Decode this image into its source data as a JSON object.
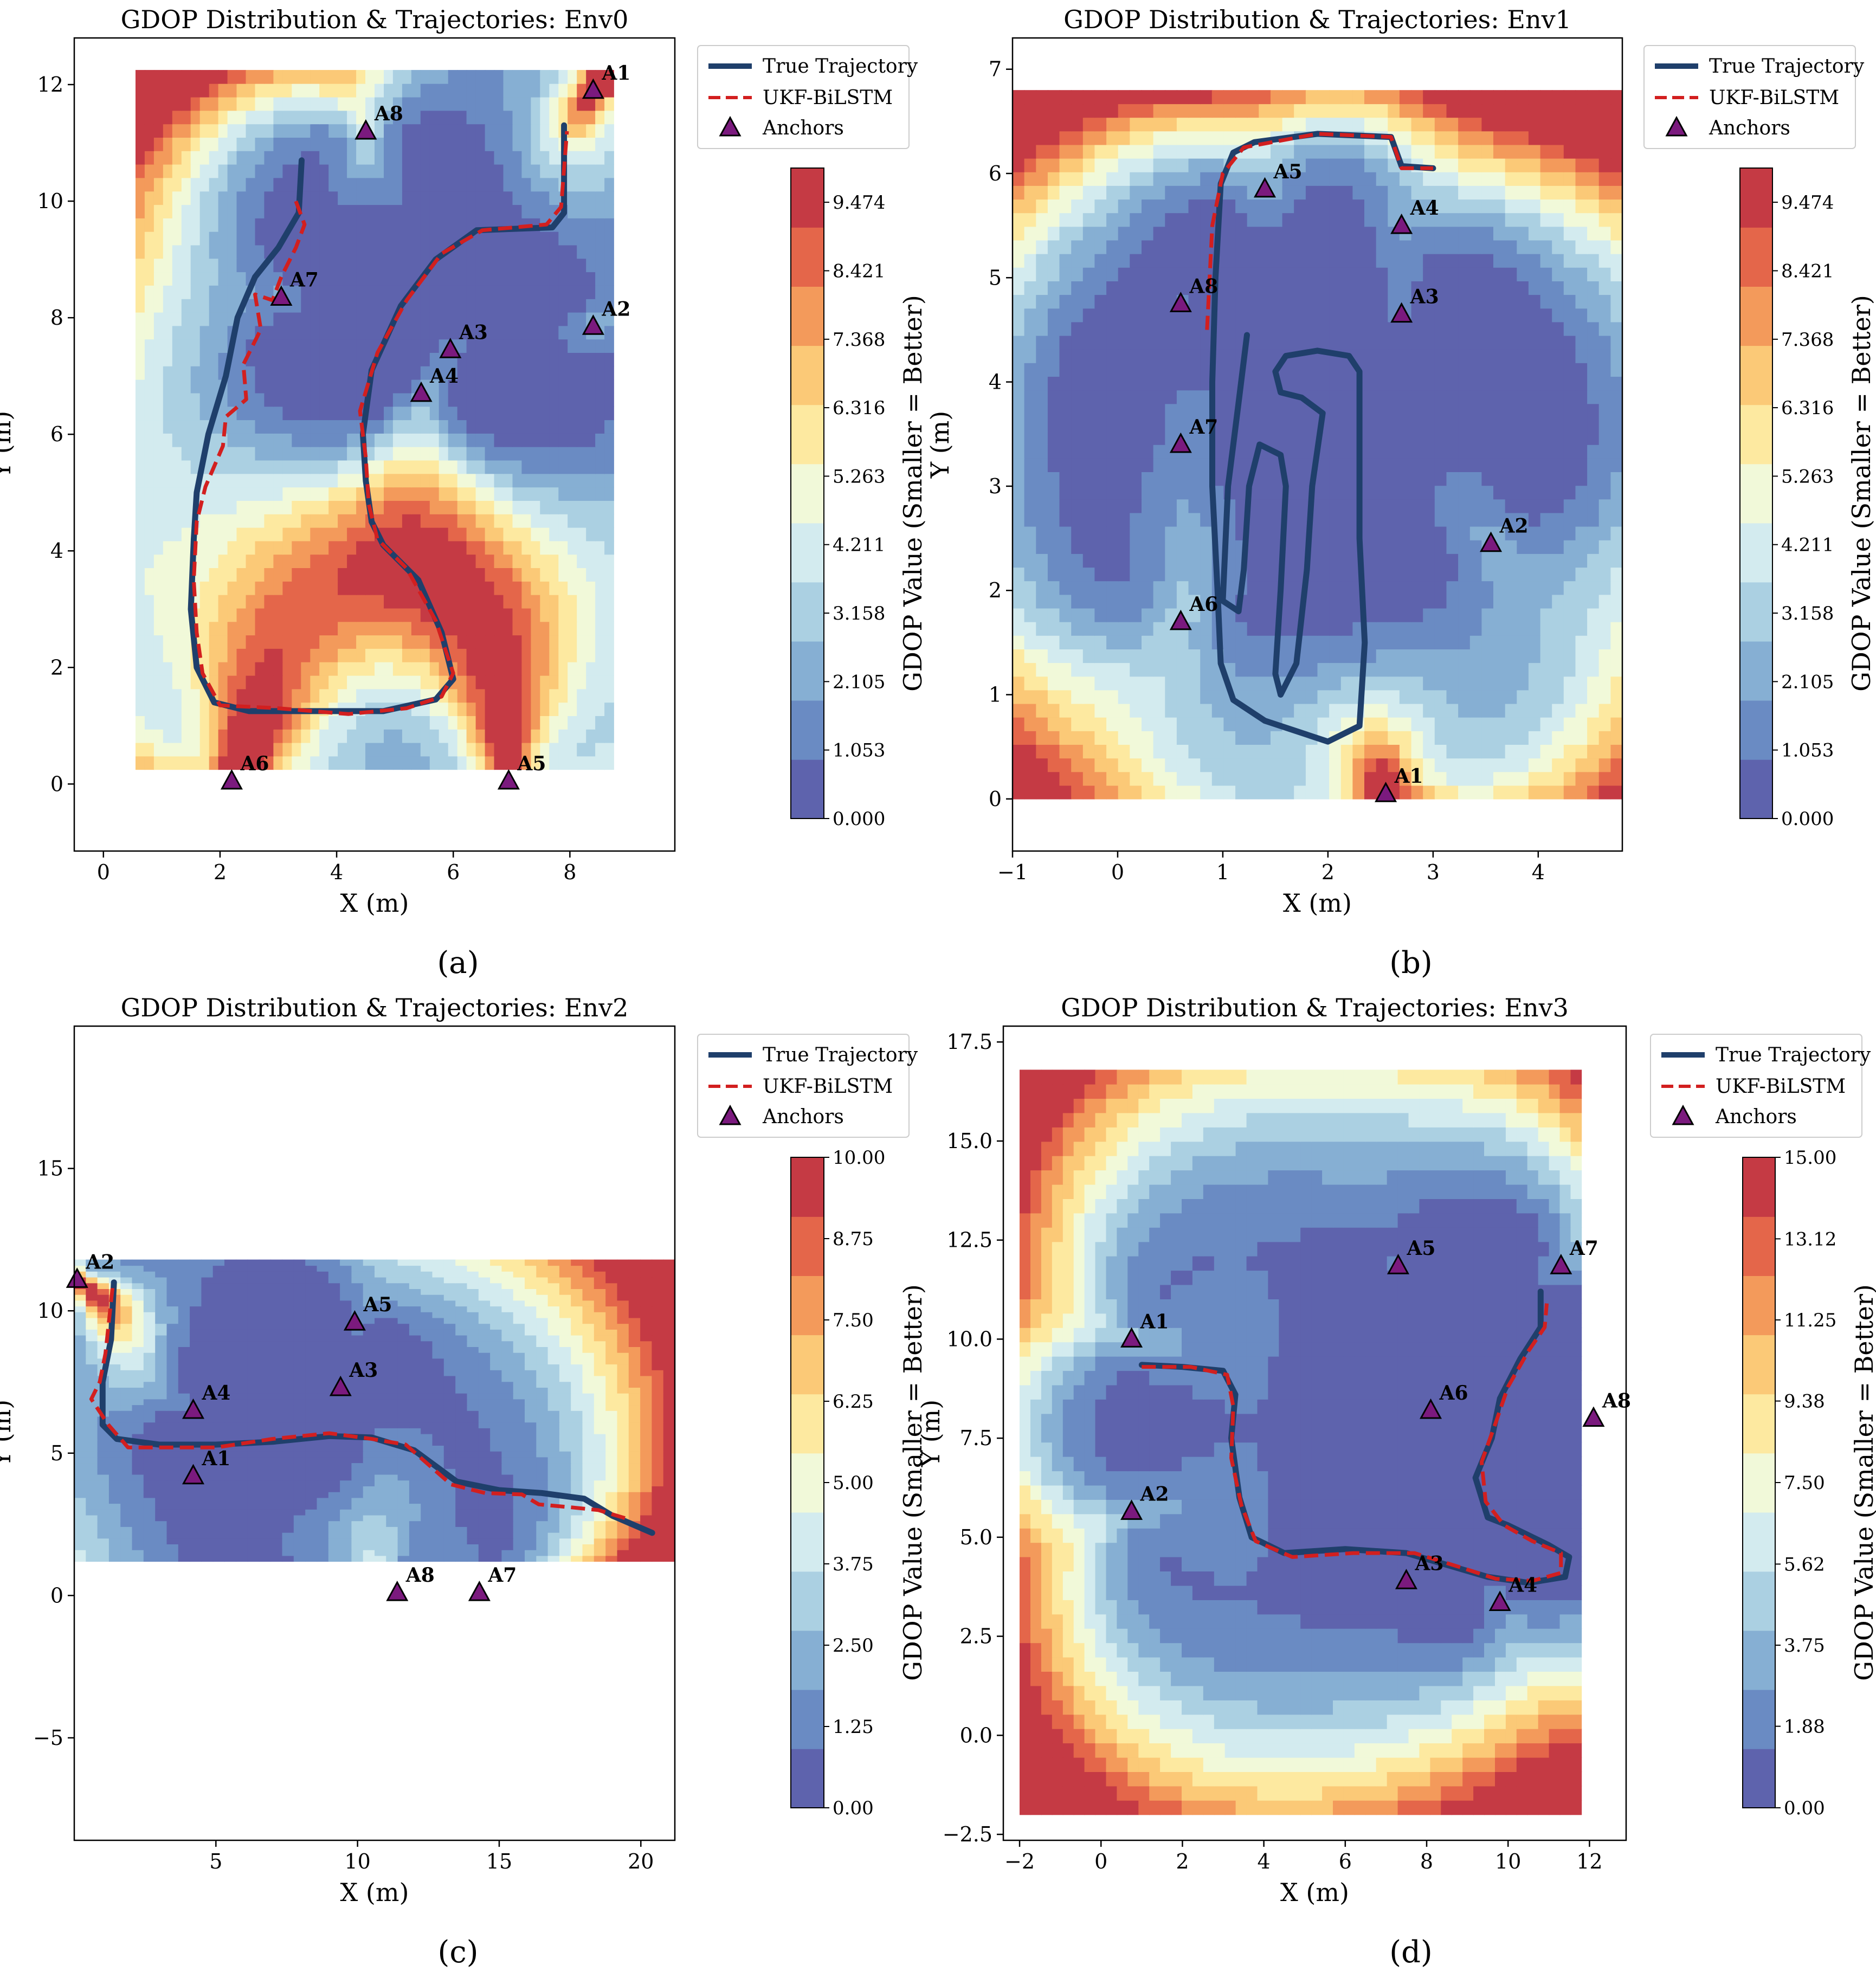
{
  "colors": {
    "true_trajectory": "#1f3f6b",
    "ukf_bilstm": "#d21f1f",
    "anchor_fill": "#7b1a7e",
    "scale": [
      "#5e63ad",
      "#6a8bc3",
      "#86afd3",
      "#abd0e2",
      "#d3ebef",
      "#f1f9d9",
      "#fde9a0",
      "#fbc977",
      "#f39a5b",
      "#e4664a",
      "#c53a44"
    ]
  },
  "figure": {
    "sublabels": [
      "(a)",
      "(b)",
      "(c)",
      "(d)"
    ]
  },
  "chart_data": [
    {
      "type": "contour+line",
      "title": "GDOP Distribution & Trajectories: Env0",
      "xlabel": "X (m)",
      "ylabel": "Y (m)",
      "xlim": [
        -0.5,
        9.8
      ],
      "ylim": [
        -1.15,
        12.8
      ],
      "xticks": [
        0,
        2,
        4,
        6,
        8
      ],
      "xtick_labels": [
        "0",
        "2",
        "4",
        "6",
        "8"
      ],
      "yticks": [
        0,
        2,
        4,
        6,
        8,
        10,
        12
      ],
      "ytick_labels": [
        "0",
        "2",
        "4",
        "6",
        "8",
        "10",
        "12"
      ],
      "field_extent": {
        "x": [
          0.55,
          8.75
        ],
        "y": [
          0.25,
          12.25
        ]
      },
      "field_min": 0.0,
      "field_max": 10.0,
      "legend": [
        "True Trajectory",
        "UKF-BiLSTM",
        "Anchors"
      ],
      "colorbar": {
        "label": "GDOP Value (Smaller = Better)",
        "min": 0.0,
        "max": 10.0,
        "ticks": [
          0.0,
          1.053,
          2.105,
          3.158,
          4.211,
          5.263,
          6.316,
          7.368,
          8.421,
          9.474
        ],
        "tick_labels": [
          "0.000",
          "1.053",
          "2.105",
          "3.158",
          "4.211",
          "5.263",
          "6.316",
          "7.368",
          "8.421",
          "9.474"
        ]
      },
      "anchors": [
        {
          "name": "A1",
          "x": 8.4,
          "y": 11.9
        },
        {
          "name": "A2",
          "x": 8.4,
          "y": 7.85
        },
        {
          "name": "A3",
          "x": 5.95,
          "y": 7.45
        },
        {
          "name": "A4",
          "x": 5.45,
          "y": 6.7
        },
        {
          "name": "A5",
          "x": 6.95,
          "y": 0.05
        },
        {
          "name": "A6",
          "x": 2.2,
          "y": 0.05
        },
        {
          "name": "A7",
          "x": 3.05,
          "y": 8.35
        },
        {
          "name": "A8",
          "x": 4.5,
          "y": 11.2
        }
      ],
      "true_trajectory": [
        [
          3.4,
          10.7
        ],
        [
          3.35,
          9.8
        ],
        [
          3.0,
          9.2
        ],
        [
          2.6,
          8.7
        ],
        [
          2.3,
          8.0
        ],
        [
          2.1,
          7.0
        ],
        [
          1.8,
          6.0
        ],
        [
          1.6,
          5.0
        ],
        [
          1.55,
          4.2
        ],
        [
          1.5,
          3.0
        ],
        [
          1.6,
          2.0
        ],
        [
          1.9,
          1.4
        ],
        [
          2.5,
          1.25
        ],
        [
          3.6,
          1.25
        ],
        [
          4.8,
          1.25
        ],
        [
          5.7,
          1.45
        ],
        [
          6.0,
          1.8
        ],
        [
          5.8,
          2.6
        ],
        [
          5.4,
          3.5
        ],
        [
          4.8,
          4.1
        ],
        [
          4.6,
          4.5
        ],
        [
          4.5,
          5.2
        ],
        [
          4.45,
          6.0
        ],
        [
          4.6,
          7.1
        ],
        [
          5.1,
          8.2
        ],
        [
          5.7,
          9.0
        ],
        [
          6.4,
          9.5
        ],
        [
          7.7,
          9.55
        ],
        [
          7.9,
          9.8
        ],
        [
          7.9,
          11.3
        ]
      ],
      "predicted_trajectory": [
        [
          3.3,
          10.0
        ],
        [
          3.45,
          9.6
        ],
        [
          3.3,
          9.2
        ],
        [
          3.05,
          8.7
        ],
        [
          2.9,
          8.3
        ],
        [
          2.6,
          8.4
        ],
        [
          2.7,
          7.8
        ],
        [
          2.4,
          7.2
        ],
        [
          2.45,
          6.6
        ],
        [
          2.1,
          6.3
        ],
        [
          2.05,
          5.8
        ],
        [
          1.75,
          5.1
        ],
        [
          1.6,
          4.5
        ],
        [
          1.55,
          3.5
        ],
        [
          1.6,
          2.6
        ],
        [
          1.7,
          1.9
        ],
        [
          2.0,
          1.35
        ],
        [
          3.0,
          1.3
        ],
        [
          4.2,
          1.2
        ],
        [
          5.2,
          1.3
        ],
        [
          5.8,
          1.5
        ],
        [
          6.0,
          1.9
        ],
        [
          5.7,
          2.8
        ],
        [
          5.2,
          3.7
        ],
        [
          4.7,
          4.2
        ],
        [
          4.55,
          4.8
        ],
        [
          4.5,
          5.6
        ],
        [
          4.4,
          6.4
        ],
        [
          4.7,
          7.4
        ],
        [
          5.2,
          8.3
        ],
        [
          5.8,
          9.1
        ],
        [
          6.5,
          9.5
        ],
        [
          7.6,
          9.6
        ],
        [
          7.85,
          9.9
        ],
        [
          7.95,
          11.2
        ]
      ]
    },
    {
      "type": "contour+line",
      "title": "GDOP Distribution & Trajectories: Env1",
      "xlabel": "X (m)",
      "ylabel": "Y (m)",
      "xlim": [
        -1.0,
        4.8
      ],
      "ylim": [
        -0.5,
        7.3
      ],
      "xticks": [
        -1,
        0,
        1,
        2,
        3,
        4
      ],
      "xtick_labels": [
        "−1",
        "0",
        "1",
        "2",
        "3",
        "4"
      ],
      "yticks": [
        0,
        1,
        2,
        3,
        4,
        5,
        6,
        7
      ],
      "ytick_labels": [
        "0",
        "1",
        "2",
        "3",
        "4",
        "5",
        "6",
        "7"
      ],
      "field_extent": {
        "x": [
          -1.0,
          4.8
        ],
        "y": [
          0.0,
          6.8
        ]
      },
      "field_min": 0.0,
      "field_max": 10.0,
      "legend": [
        "True Trajectory",
        "UKF-BiLSTM",
        "Anchors"
      ],
      "colorbar": {
        "label": "GDOP Value (Smaller = Better)",
        "min": 0.0,
        "max": 10.0,
        "ticks": [
          0.0,
          1.053,
          2.105,
          3.158,
          4.211,
          5.263,
          6.316,
          7.368,
          8.421,
          9.474
        ],
        "tick_labels": [
          "0.000",
          "1.053",
          "2.105",
          "3.158",
          "4.211",
          "5.263",
          "6.316",
          "7.368",
          "8.421",
          "9.474"
        ]
      },
      "anchors": [
        {
          "name": "A1",
          "x": 2.55,
          "y": 0.05
        },
        {
          "name": "A2",
          "x": 3.55,
          "y": 2.45
        },
        {
          "name": "A3",
          "x": 2.7,
          "y": 4.65
        },
        {
          "name": "A4",
          "x": 2.7,
          "y": 5.5
        },
        {
          "name": "A5",
          "x": 1.4,
          "y": 5.85
        },
        {
          "name": "A6",
          "x": 0.6,
          "y": 1.7
        },
        {
          "name": "A7",
          "x": 0.6,
          "y": 3.4
        },
        {
          "name": "A8",
          "x": 0.6,
          "y": 4.75
        }
      ],
      "true_trajectory": [
        [
          3.0,
          6.05
        ],
        [
          2.7,
          6.07
        ],
        [
          2.6,
          6.35
        ],
        [
          1.9,
          6.38
        ],
        [
          1.3,
          6.3
        ],
        [
          1.1,
          6.2
        ],
        [
          0.98,
          5.9
        ],
        [
          0.93,
          5.0
        ],
        [
          0.9,
          4.0
        ],
        [
          0.9,
          3.0
        ],
        [
          0.95,
          2.0
        ],
        [
          0.98,
          1.3
        ],
        [
          1.1,
          0.95
        ],
        [
          1.4,
          0.75
        ],
        [
          2.0,
          0.55
        ],
        [
          2.3,
          0.7
        ],
        [
          2.35,
          1.5
        ],
        [
          2.3,
          2.5
        ],
        [
          2.3,
          3.5
        ],
        [
          2.3,
          4.1
        ],
        [
          2.2,
          4.25
        ],
        [
          1.9,
          4.3
        ],
        [
          1.6,
          4.25
        ],
        [
          1.5,
          4.1
        ],
        [
          1.55,
          3.9
        ],
        [
          1.75,
          3.85
        ],
        [
          1.95,
          3.7
        ],
        [
          1.85,
          3.0
        ],
        [
          1.8,
          2.2
        ],
        [
          1.7,
          1.3
        ],
        [
          1.55,
          1.0
        ],
        [
          1.5,
          1.2
        ],
        [
          1.55,
          2.0
        ],
        [
          1.6,
          3.0
        ],
        [
          1.55,
          3.3
        ],
        [
          1.35,
          3.4
        ],
        [
          1.25,
          3.0
        ],
        [
          1.2,
          2.2
        ],
        [
          1.15,
          1.8
        ],
        [
          1.0,
          1.9
        ],
        [
          1.05,
          3.0
        ],
        [
          1.15,
          3.8
        ],
        [
          1.23,
          4.45
        ]
      ],
      "predicted_trajectory": [
        [
          0.85,
          4.5
        ],
        [
          0.9,
          5.5
        ],
        [
          1.0,
          6.0
        ],
        [
          1.2,
          6.25
        ],
        [
          1.9,
          6.38
        ],
        [
          2.6,
          6.35
        ],
        [
          2.7,
          6.05
        ],
        [
          3.0,
          6.05
        ]
      ]
    },
    {
      "type": "contour+line",
      "title": "GDOP Distribution & Trajectories: Env2",
      "xlabel": "X (m)",
      "ylabel": "Y (m)",
      "xlim": [
        0.0,
        21.2
      ],
      "ylim": [
        -8.6,
        20.0
      ],
      "xticks": [
        5,
        10,
        15,
        20
      ],
      "xtick_labels": [
        "5",
        "10",
        "15",
        "20"
      ],
      "yticks": [
        -5,
        0,
        5,
        10,
        15
      ],
      "ytick_labels": [
        "−5",
        "0",
        "5",
        "10",
        "15"
      ],
      "field_extent": {
        "x": [
          0.0,
          21.2
        ],
        "y": [
          1.2,
          11.8
        ]
      },
      "field_min": 0.0,
      "field_max": 10.0,
      "legend": [
        "True Trajectory",
        "UKF-BiLSTM",
        "Anchors"
      ],
      "colorbar": {
        "label": "GDOP Value (Smaller = Better)",
        "min": 0.0,
        "max": 10.0,
        "ticks": [
          0.0,
          1.25,
          2.5,
          3.75,
          5.0,
          6.25,
          7.5,
          8.75,
          10.0
        ],
        "tick_labels": [
          "0.00",
          "1.25",
          "2.50",
          "3.75",
          "5.00",
          "6.25",
          "7.50",
          "8.75",
          "10.00"
        ]
      },
      "anchors": [
        {
          "name": "A1",
          "x": 4.2,
          "y": 4.2
        },
        {
          "name": "A2",
          "x": 0.1,
          "y": 11.1
        },
        {
          "name": "A3",
          "x": 9.4,
          "y": 7.3
        },
        {
          "name": "A4",
          "x": 4.2,
          "y": 6.5
        },
        {
          "name": "A5",
          "x": 9.9,
          "y": 9.6
        },
        {
          "name": "A7",
          "x": 14.3,
          "y": 0.1
        },
        {
          "name": "A8",
          "x": 11.4,
          "y": 0.1
        }
      ],
      "true_trajectory": [
        [
          1.4,
          11.0
        ],
        [
          1.3,
          9.0
        ],
        [
          1.0,
          7.5
        ],
        [
          1.0,
          6.0
        ],
        [
          1.5,
          5.5
        ],
        [
          3.0,
          5.3
        ],
        [
          5.0,
          5.3
        ],
        [
          7.0,
          5.4
        ],
        [
          9.0,
          5.6
        ],
        [
          10.5,
          5.55
        ],
        [
          12.0,
          5.1
        ],
        [
          13.5,
          4.0
        ],
        [
          15.0,
          3.7
        ],
        [
          16.5,
          3.6
        ],
        [
          18.0,
          3.4
        ],
        [
          19.0,
          2.8
        ],
        [
          20.4,
          2.2
        ]
      ],
      "predicted_trajectory": [
        [
          1.35,
          10.8
        ],
        [
          1.1,
          8.5
        ],
        [
          0.9,
          7.5
        ],
        [
          0.6,
          6.9
        ],
        [
          1.2,
          6.0
        ],
        [
          1.9,
          5.2
        ],
        [
          3.0,
          5.2
        ],
        [
          5.0,
          5.2
        ],
        [
          7.0,
          5.5
        ],
        [
          9.0,
          5.7
        ],
        [
          10.5,
          5.5
        ],
        [
          11.7,
          5.3
        ],
        [
          12.5,
          4.6
        ],
        [
          13.3,
          3.9
        ],
        [
          14.5,
          3.6
        ],
        [
          15.8,
          3.55
        ],
        [
          16.4,
          3.2
        ],
        [
          17.5,
          3.1
        ],
        [
          18.5,
          3.0
        ],
        [
          19.5,
          2.7
        ]
      ]
    },
    {
      "type": "contour+line",
      "title": "GDOP Distribution & Trajectories: Env3",
      "xlabel": "X (m)",
      "ylabel": "Y (m)",
      "xlim": [
        -2.4,
        12.9
      ],
      "ylim": [
        -2.65,
        17.9
      ],
      "xticks": [
        -2,
        0,
        2,
        4,
        6,
        8,
        10,
        12
      ],
      "xtick_labels": [
        "−2",
        "0",
        "2",
        "4",
        "6",
        "8",
        "10",
        "12"
      ],
      "yticks": [
        -2.5,
        0.0,
        2.5,
        5.0,
        7.5,
        10.0,
        12.5,
        15.0,
        17.5
      ],
      "ytick_labels": [
        "−2.5",
        "0.0",
        "2.5",
        "5.0",
        "7.5",
        "10.0",
        "12.5",
        "15.0",
        "17.5"
      ],
      "field_extent": {
        "x": [
          -2.0,
          11.8
        ],
        "y": [
          -2.0,
          16.8
        ]
      },
      "field_min": 0.0,
      "field_max": 15.0,
      "legend": [
        "True Trajectory",
        "UKF-BiLSTM",
        "Anchors"
      ],
      "colorbar": {
        "label": "GDOP Value (Smaller = Better)",
        "min": 0.0,
        "max": 15.0,
        "ticks": [
          0.0,
          1.88,
          3.75,
          5.62,
          7.5,
          9.38,
          11.25,
          13.12,
          15.0
        ],
        "tick_labels": [
          "0.00",
          "1.88",
          "3.75",
          "5.62",
          "7.50",
          "9.38",
          "11.25",
          "13.12",
          "15.00"
        ]
      },
      "anchors": [
        {
          "name": "A1",
          "x": 0.75,
          "y": 10.0
        },
        {
          "name": "A2",
          "x": 0.75,
          "y": 5.65
        },
        {
          "name": "A3",
          "x": 7.5,
          "y": 3.9
        },
        {
          "name": "A4",
          "x": 9.8,
          "y": 3.35
        },
        {
          "name": "A5",
          "x": 7.3,
          "y": 11.85
        },
        {
          "name": "A6",
          "x": 8.1,
          "y": 8.2
        },
        {
          "name": "A7",
          "x": 11.3,
          "y": 11.85
        },
        {
          "name": "A8",
          "x": 12.1,
          "y": 8.0
        }
      ],
      "true_trajectory": [
        [
          1.0,
          9.35
        ],
        [
          2.0,
          9.3
        ],
        [
          3.0,
          9.2
        ],
        [
          3.3,
          8.6
        ],
        [
          3.2,
          7.5
        ],
        [
          3.4,
          6.0
        ],
        [
          3.7,
          5.0
        ],
        [
          4.5,
          4.6
        ],
        [
          6.0,
          4.7
        ],
        [
          7.5,
          4.6
        ],
        [
          8.5,
          4.3
        ],
        [
          9.5,
          4.0
        ],
        [
          10.5,
          3.85
        ],
        [
          11.4,
          4.0
        ],
        [
          11.5,
          4.5
        ],
        [
          11.0,
          4.8
        ],
        [
          10.0,
          5.3
        ],
        [
          9.5,
          5.5
        ],
        [
          9.2,
          6.5
        ],
        [
          9.6,
          7.5
        ],
        [
          9.8,
          8.5
        ],
        [
          10.3,
          9.5
        ],
        [
          10.8,
          10.3
        ],
        [
          10.8,
          11.2
        ]
      ],
      "predicted_trajectory": [
        [
          1.0,
          9.3
        ],
        [
          2.2,
          9.3
        ],
        [
          3.1,
          9.1
        ],
        [
          3.25,
          8.3
        ],
        [
          3.2,
          7.0
        ],
        [
          3.45,
          5.8
        ],
        [
          3.8,
          4.9
        ],
        [
          4.7,
          4.5
        ],
        [
          6.2,
          4.6
        ],
        [
          7.7,
          4.6
        ],
        [
          8.8,
          4.25
        ],
        [
          9.7,
          3.95
        ],
        [
          10.6,
          3.9
        ],
        [
          11.3,
          4.1
        ],
        [
          11.3,
          4.6
        ],
        [
          10.6,
          4.9
        ],
        [
          9.9,
          5.3
        ],
        [
          9.45,
          5.9
        ],
        [
          9.35,
          6.9
        ],
        [
          9.7,
          7.9
        ],
        [
          10.0,
          8.8
        ],
        [
          10.5,
          9.7
        ],
        [
          10.9,
          10.3
        ],
        [
          10.95,
          10.9
        ]
      ]
    }
  ]
}
